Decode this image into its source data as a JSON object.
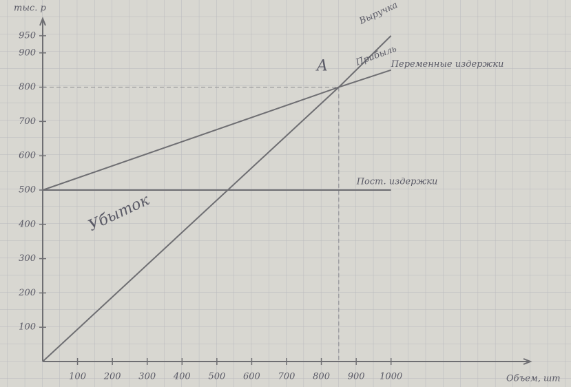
{
  "chart_data": {
    "type": "line",
    "x_label": "Объем, шт",
    "y_label": "тыс. р",
    "x": [
      0,
      850,
      1000
    ],
    "series": [
      {
        "name": "Выручка",
        "color": "#6e6e72",
        "values": [
          0,
          800,
          950
        ]
      },
      {
        "name": "Переменные издержки",
        "color": "#6e6e72",
        "values": [
          500,
          800,
          850
        ]
      },
      {
        "name": "Пост. издержки",
        "color": "#6e6e72",
        "values": [
          500,
          500,
          500
        ]
      }
    ],
    "break_even": {
      "label": "A",
      "x": 850,
      "y": 800
    },
    "annotations": [
      "Прибыль",
      "Убыток"
    ],
    "xlim": [
      0,
      1400
    ],
    "ylim": [
      0,
      1000
    ],
    "xticks": [
      100,
      200,
      300,
      400,
      500,
      600,
      700,
      800,
      900,
      1000
    ],
    "yticks": [
      100,
      200,
      300,
      400,
      500,
      600,
      700,
      800,
      900,
      950
    ],
    "grid": true
  }
}
